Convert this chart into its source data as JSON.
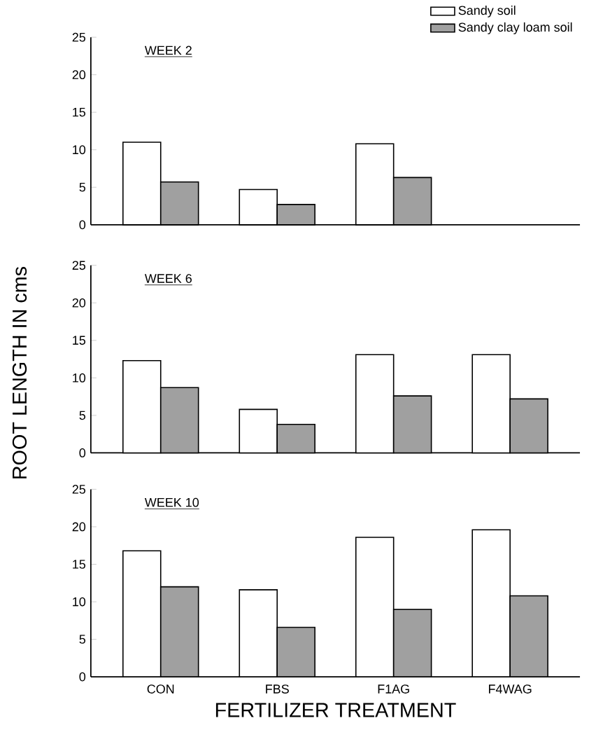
{
  "chart_data": [
    {
      "type": "bar",
      "title": "WEEK 2",
      "categories": [
        null,
        null,
        null,
        null
      ],
      "ylim": [
        0,
        25
      ],
      "yticks": [
        0,
        5,
        10,
        15,
        20,
        25
      ],
      "tick_labels": "y",
      "legend": "top right",
      "series": [
        {
          "name": "Sandy soil",
          "color": "#ffffff",
          "values": [
            11,
            4.7,
            10.8,
            null
          ]
        },
        {
          "name": "Sandy clay loam soil",
          "color": "#a0a0a0",
          "values": [
            5.7,
            2.7,
            6.3,
            null
          ]
        }
      ]
    },
    {
      "type": "bar",
      "title": "WEEK 6",
      "ylabel": "ROOT LENGTH IN cms",
      "categories": [
        null,
        null,
        null,
        null
      ],
      "ylim": [
        0,
        25
      ],
      "yticks": [
        0,
        5,
        10,
        15,
        20,
        25
      ],
      "tick_labels": "y",
      "series": [
        {
          "color": "#ffffff",
          "values": [
            12.3,
            5.8,
            13.1,
            13.1
          ]
        },
        {
          "color": "#a0a0a0",
          "values": [
            8.7,
            3.8,
            7.6,
            7.2
          ]
        }
      ]
    },
    {
      "type": "bar",
      "title": "WEEK 10",
      "xlabel": "FERTILIZER TREATMENT",
      "categories": [
        "CON",
        "FBS",
        "F1AG",
        "F4WAG"
      ],
      "ylim": [
        0,
        25
      ],
      "yticks": [
        0,
        5,
        10,
        15,
        20,
        25
      ],
      "series": [
        {
          "color": "#ffffff",
          "values": [
            16.8,
            11.6,
            18.6,
            19.6
          ]
        },
        {
          "color": "#a0a0a0",
          "values": [
            12,
            6.6,
            9,
            10.8
          ]
        }
      ]
    }
  ]
}
